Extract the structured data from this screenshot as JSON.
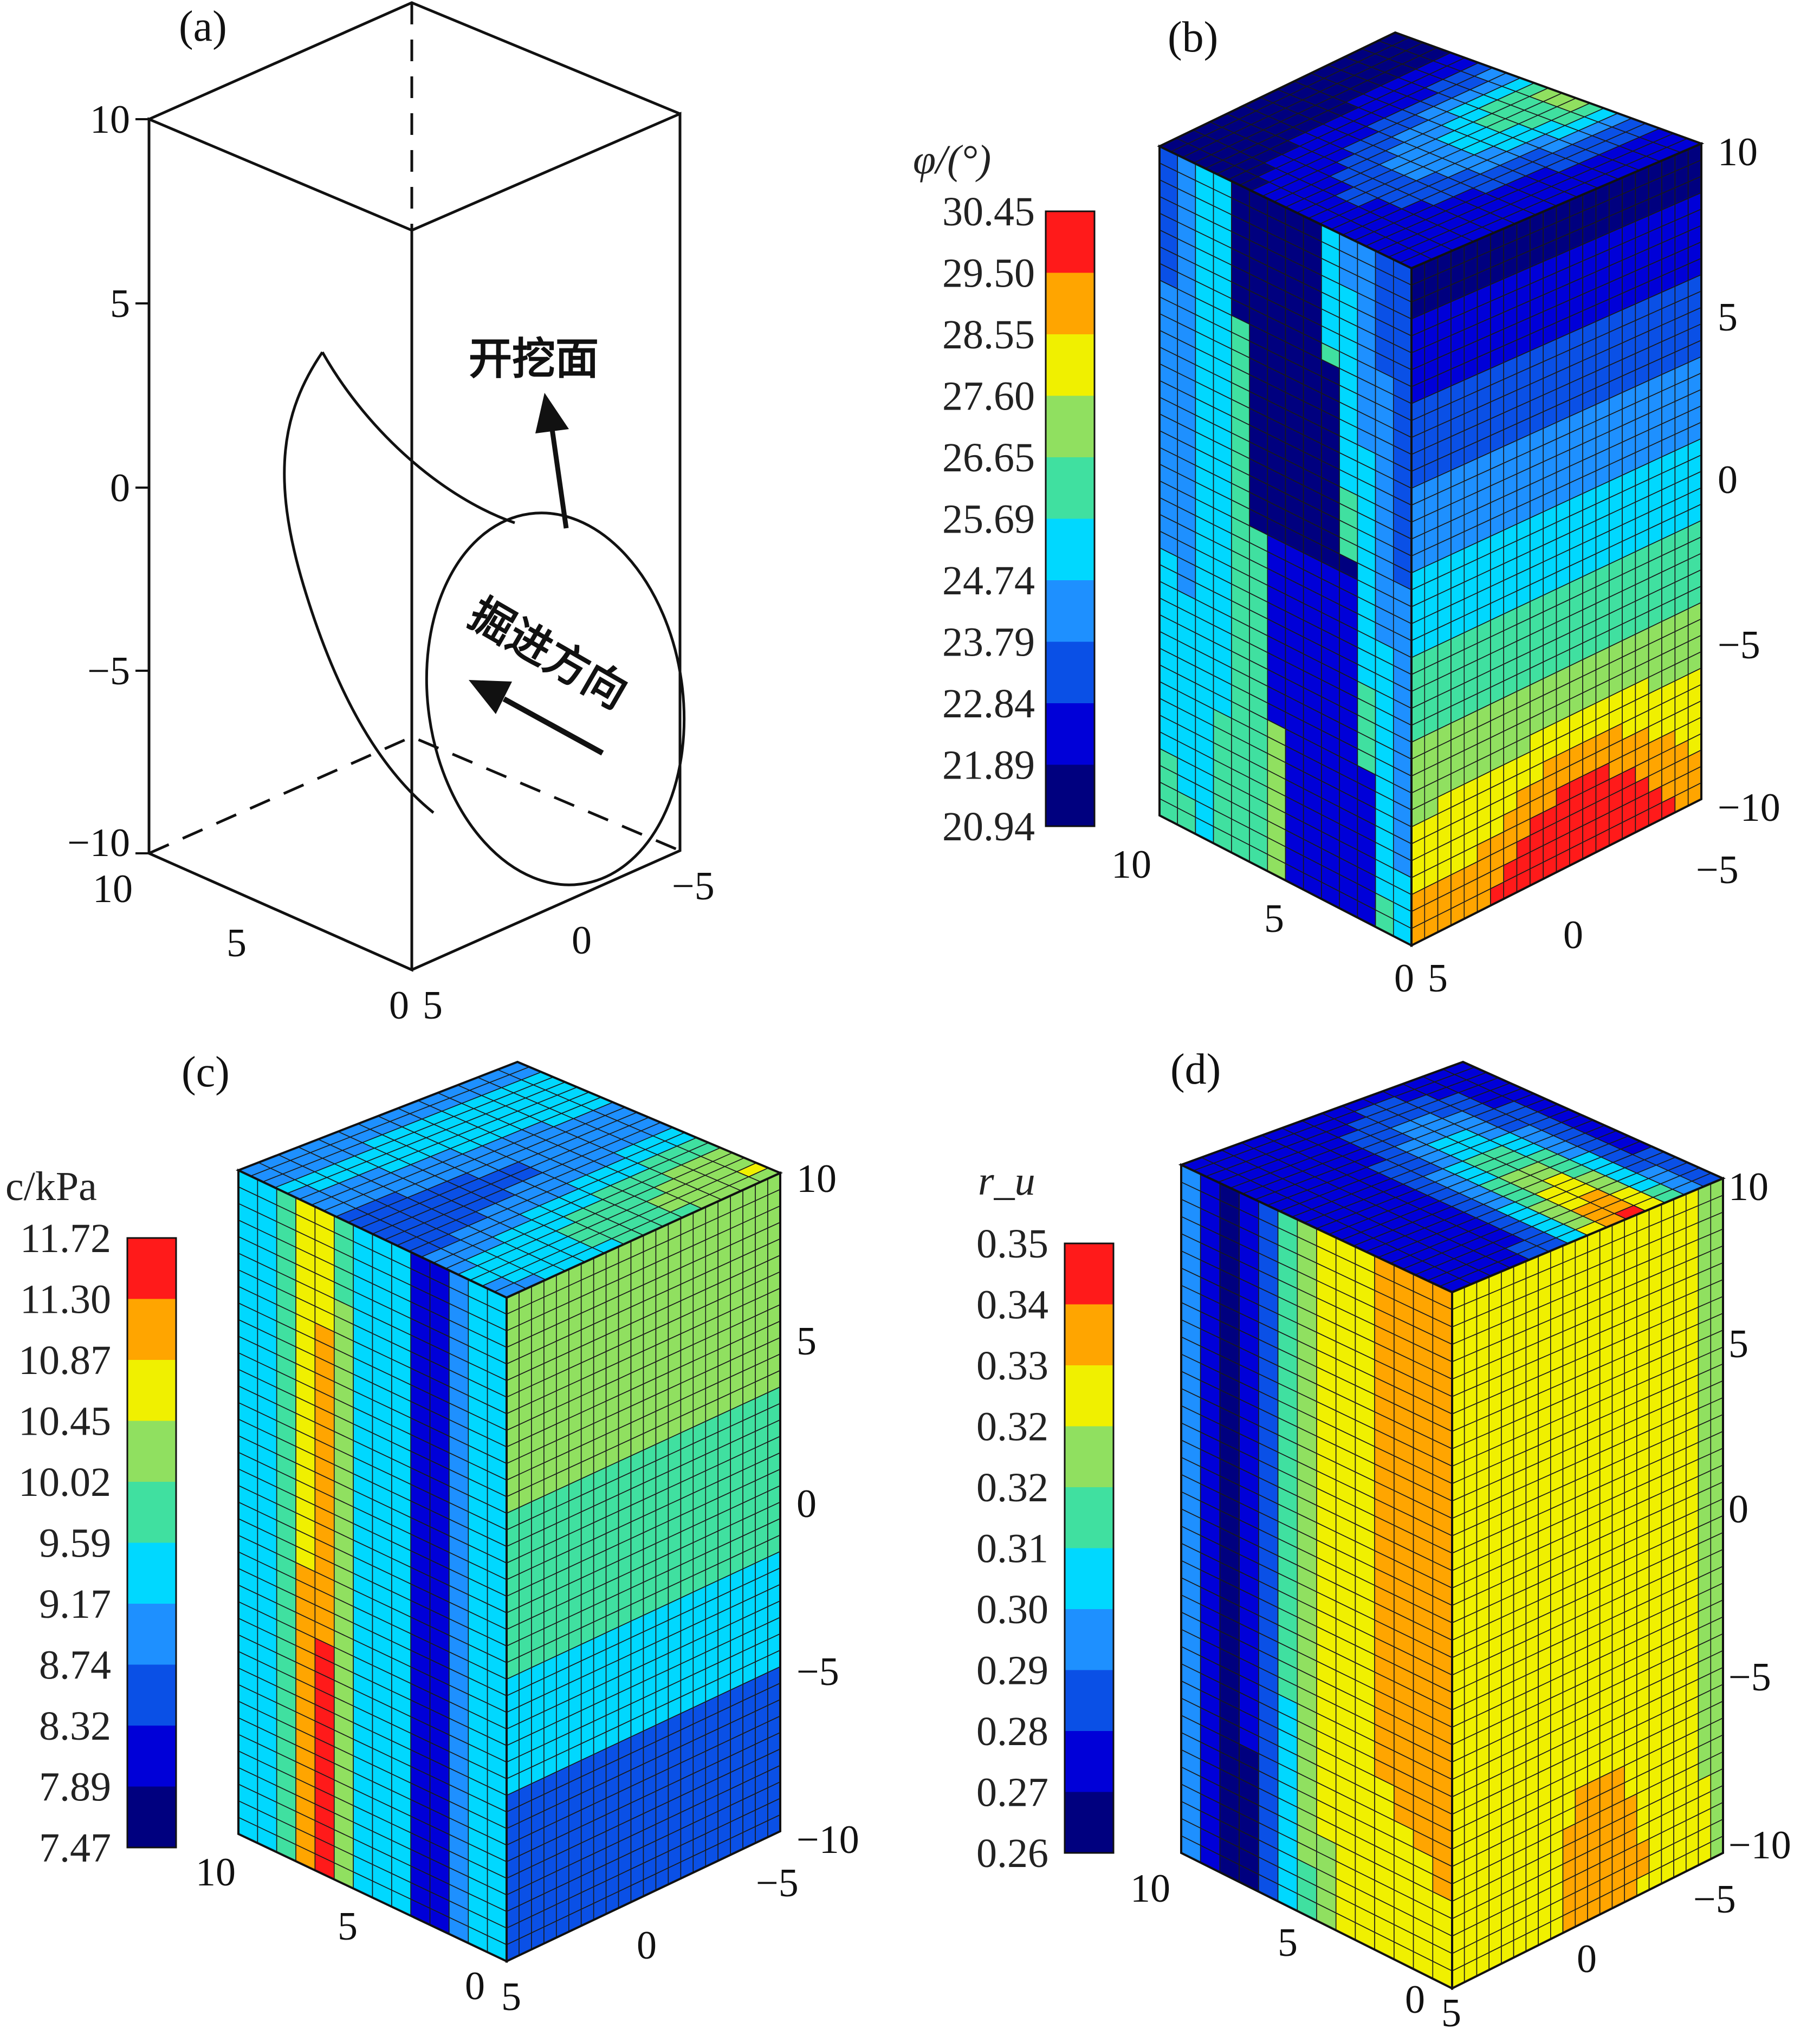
{
  "panels": [
    {
      "id": "a",
      "label": "(a)",
      "z_ticks": [
        "10",
        "5",
        "0",
        "−5",
        "−10"
      ],
      "left_ticks": [
        "10",
        "5",
        "0"
      ],
      "right_ticks": [
        "5",
        "0",
        "−5"
      ],
      "excavation_face_label": "开挖面",
      "tunneling_direction_label": "掘进方向"
    },
    {
      "id": "b",
      "label": "(b)",
      "colorbar": {
        "title": "φ/(°)",
        "values": [
          "30.45",
          "29.50",
          "28.55",
          "27.60",
          "26.65",
          "25.69",
          "24.74",
          "23.79",
          "22.84",
          "21.89",
          "20.94"
        ]
      },
      "z_ticks": [
        "10",
        "5",
        "0",
        "−5",
        "−10"
      ],
      "left_ticks": [
        "10",
        "5",
        "0"
      ],
      "right_ticks": [
        "5",
        "0",
        "−5"
      ]
    },
    {
      "id": "c",
      "label": "(c)",
      "colorbar": {
        "title": "c/kPa",
        "values": [
          "11.72",
          "11.30",
          "10.87",
          "10.45",
          "10.02",
          "9.59",
          "9.17",
          "8.74",
          "8.32",
          "7.89",
          "7.47"
        ]
      },
      "z_ticks": [
        "10",
        "5",
        "0",
        "−5",
        "−10"
      ],
      "left_ticks": [
        "10",
        "5",
        "0"
      ],
      "right_ticks": [
        "5",
        "0",
        "−5"
      ]
    },
    {
      "id": "d",
      "label": "(d)",
      "colorbar": {
        "title": "r_u",
        "values": [
          "0.35",
          "0.34",
          "0.33",
          "0.32",
          "0.32",
          "0.31",
          "0.30",
          "0.29",
          "0.28",
          "0.27",
          "0.26"
        ]
      },
      "z_ticks": [
        "10",
        "5",
        "0",
        "−5",
        "−10"
      ],
      "left_ticks": [
        "10",
        "5",
        "0"
      ],
      "right_ticks": [
        "5",
        "0",
        "−5"
      ]
    }
  ],
  "colormap": [
    "#00007f",
    "#0000d8",
    "#0a50e6",
    "#1e90ff",
    "#00d8ff",
    "#40e0a0",
    "#90e060",
    "#f0f000",
    "#ffa500",
    "#ff1a1a"
  ]
}
